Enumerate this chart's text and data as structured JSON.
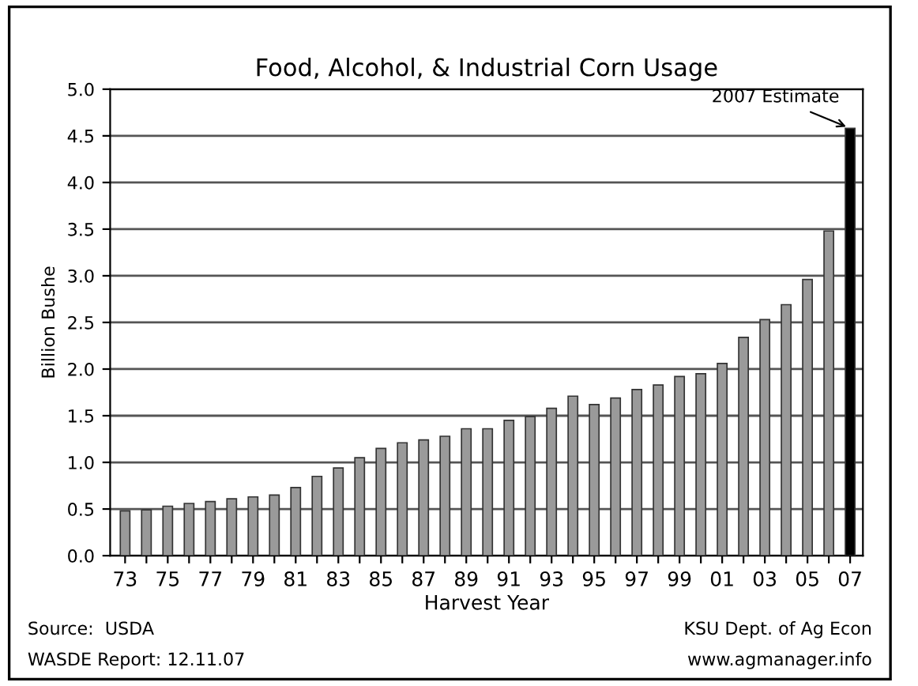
{
  "chart_data": {
    "type": "bar",
    "title": "Food, Alcohol, & Industrial Corn Usage",
    "xlabel": "Harvest Year",
    "ylabel": "Billion Bushe",
    "categories": [
      "73",
      null,
      "75",
      null,
      "77",
      null,
      "79",
      null,
      "81",
      null,
      "83",
      null,
      "85",
      null,
      "87",
      null,
      "89",
      null,
      "91",
      null,
      "93",
      null,
      "95",
      null,
      "97",
      null,
      "99",
      null,
      "01",
      null,
      "03",
      null,
      "05",
      null,
      "07"
    ],
    "values": [
      0.48,
      0.49,
      0.53,
      0.56,
      0.58,
      0.61,
      0.63,
      0.65,
      0.73,
      0.85,
      0.94,
      1.05,
      1.15,
      1.21,
      1.24,
      1.28,
      1.36,
      1.36,
      1.45,
      1.49,
      1.58,
      1.71,
      1.62,
      1.69,
      1.78,
      1.83,
      1.92,
      1.95,
      2.06,
      2.34,
      2.53,
      2.69,
      2.96,
      3.48,
      4.58
    ],
    "colors": [
      "#9a9a9a",
      "#9a9a9a",
      "#9a9a9a",
      "#9a9a9a",
      "#9a9a9a",
      "#9a9a9a",
      "#9a9a9a",
      "#9a9a9a",
      "#9a9a9a",
      "#9a9a9a",
      "#9a9a9a",
      "#9a9a9a",
      "#9a9a9a",
      "#9a9a9a",
      "#9a9a9a",
      "#9a9a9a",
      "#9a9a9a",
      "#9a9a9a",
      "#9a9a9a",
      "#9a9a9a",
      "#9a9a9a",
      "#9a9a9a",
      "#9a9a9a",
      "#9a9a9a",
      "#9a9a9a",
      "#9a9a9a",
      "#9a9a9a",
      "#9a9a9a",
      "#9a9a9a",
      "#9a9a9a",
      "#9a9a9a",
      "#9a9a9a",
      "#9a9a9a",
      "#9a9a9a",
      "#000000"
    ],
    "ylim": [
      0,
      5
    ],
    "yticks": [
      {
        "value": 0,
        "label": "0.0"
      },
      {
        "value": 0.5,
        "label": "0.5"
      },
      {
        "value": 1,
        "label": "1.0"
      },
      {
        "value": 1.5,
        "label": "1.5"
      },
      {
        "value": 2,
        "label": "2.0"
      },
      {
        "value": 2.5,
        "label": "2.5"
      },
      {
        "value": 3,
        "label": "3.0"
      },
      {
        "value": 3.5,
        "label": "3.5"
      },
      {
        "value": 4,
        "label": "4.0"
      },
      {
        "value": 4.5,
        "label": "4.5"
      },
      {
        "value": 5,
        "label": "5.0"
      }
    ],
    "grid": "y",
    "annotations": [
      {
        "text": "2007 Estimate",
        "x": "07",
        "y": 4.58
      },
      "Source:  USDA",
      "WASDE Report: 12.11.07",
      "KSU Dept. of Ag Econ",
      "www.agmanager.info"
    ]
  }
}
